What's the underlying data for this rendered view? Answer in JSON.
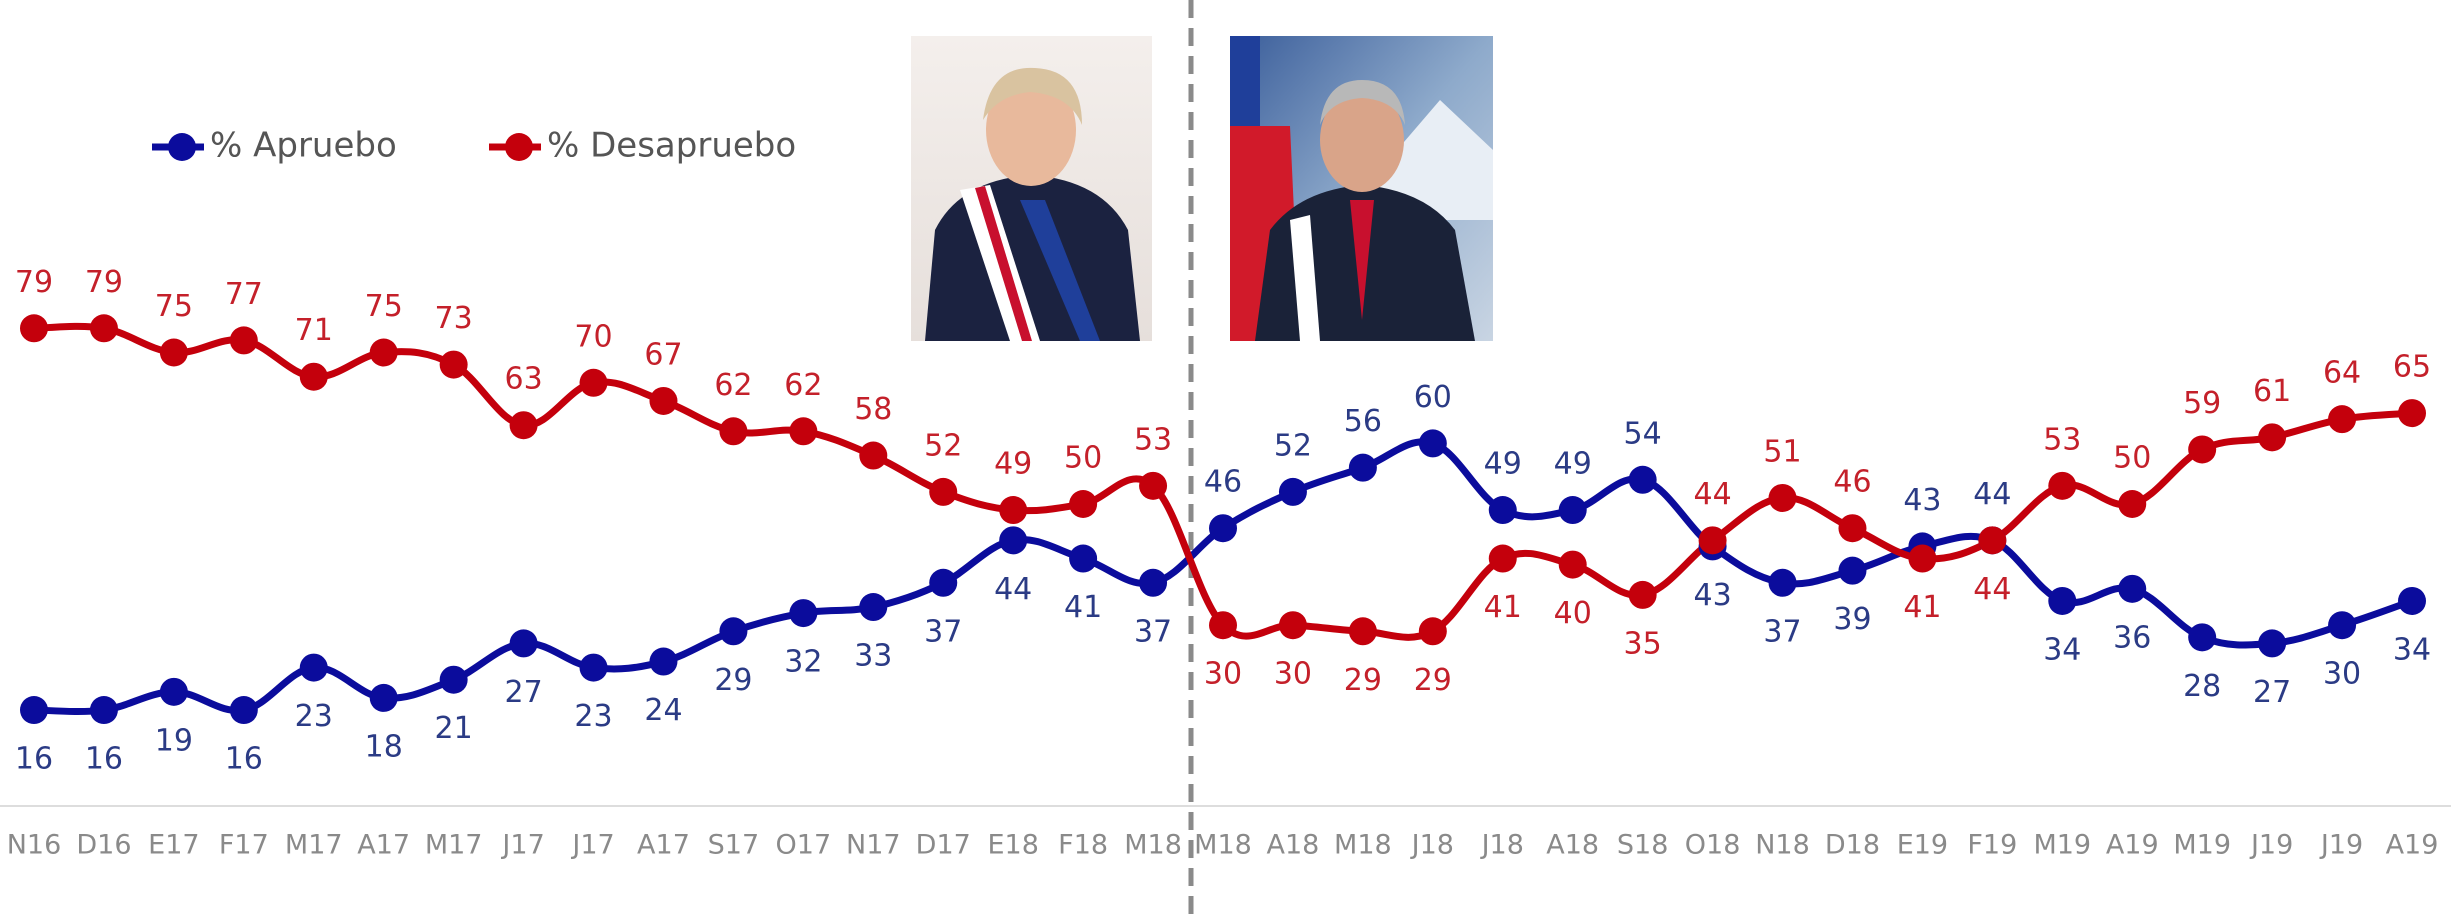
{
  "chart_data": {
    "type": "line",
    "categories": [
      "N16",
      "D16",
      "E17",
      "F17",
      "M17",
      "A17",
      "M17",
      "J17",
      "J17",
      "A17",
      "S17",
      "O17",
      "N17",
      "D17",
      "E18",
      "F18",
      "M18",
      "M18",
      "A18",
      "M18",
      "J18",
      "J18",
      "A18",
      "S18",
      "O18",
      "N18",
      "D18",
      "E19",
      "F19",
      "M19",
      "A19",
      "M19",
      "J19",
      "J19",
      "A19"
    ],
    "series": [
      {
        "name": "% Apruebo",
        "color": "#0b0c9c",
        "label_color": "#2b3b85",
        "values": [
          16,
          16,
          19,
          16,
          23,
          18,
          21,
          27,
          23,
          24,
          29,
          32,
          33,
          37,
          44,
          41,
          37,
          46,
          52,
          56,
          60,
          49,
          49,
          54,
          43,
          37,
          39,
          43,
          44,
          34,
          36,
          28,
          27,
          30,
          34
        ]
      },
      {
        "name": "% Desapruebo",
        "color": "#c4000c",
        "label_color": "#c4202a",
        "values": [
          79,
          79,
          75,
          77,
          71,
          75,
          73,
          63,
          70,
          67,
          62,
          62,
          58,
          52,
          49,
          50,
          53,
          30,
          30,
          29,
          29,
          41,
          40,
          35,
          44,
          51,
          46,
          41,
          44,
          53,
          50,
          59,
          61,
          64,
          65
        ]
      }
    ],
    "ylim": [
      0,
      100
    ]
  }
}
